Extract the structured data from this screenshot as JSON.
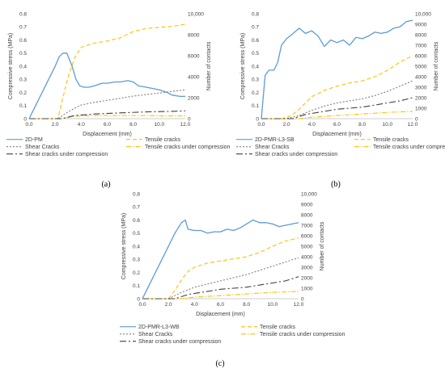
{
  "panel_labels": [
    "(a)",
    "(b)",
    "(c)"
  ],
  "colors": {
    "stress": "#5b9bd5",
    "tensile": "#ffc000",
    "shear": "#7f7f7f",
    "tensile_compression": "#ffc000",
    "shear_compression": "#404040",
    "axis": "#bfbfbf",
    "text": "#404040"
  },
  "chart_data": [
    {
      "type": "line",
      "panel": "(a)",
      "xlabel": "Displacement (mm)",
      "ylabel_left": "Compressive stress (MPa)",
      "ylabel_right": "Number of contacts",
      "xlim": [
        0,
        12
      ],
      "ylim_left": [
        0,
        0.8
      ],
      "ylim_right": [
        0,
        10000
      ],
      "xticks": [
        "0.0",
        "2.0",
        "4.0",
        "6.0",
        "8.0",
        "10.0",
        "12.0"
      ],
      "yticks_left": [
        "0",
        "0.1",
        "0.2",
        "0.3",
        "0.4",
        "0.5",
        "0.6",
        "0.7",
        "0.8"
      ],
      "yticks_right": [
        "0",
        "2000",
        "4000",
        "6000",
        "8000",
        "10,000"
      ],
      "grid": false,
      "legend_position": "bottom",
      "series": [
        {
          "name": "2D-PM",
          "axis": "left",
          "style": "solid",
          "color": "#5b9bd5",
          "x": [
            0,
            0.5,
            1.0,
            1.5,
            2.0,
            2.3,
            2.6,
            2.9,
            3.3,
            3.6,
            3.9,
            4.2,
            4.6,
            5.0,
            5.6,
            6.0,
            6.6,
            7.0,
            7.6,
            8.0,
            8.4,
            9.0,
            10.0,
            10.6,
            11.0,
            11.6,
            12.0
          ],
          "y": [
            0,
            0.1,
            0.2,
            0.3,
            0.4,
            0.47,
            0.5,
            0.5,
            0.4,
            0.3,
            0.25,
            0.24,
            0.24,
            0.25,
            0.27,
            0.27,
            0.28,
            0.28,
            0.29,
            0.28,
            0.25,
            0.24,
            0.22,
            0.2,
            0.18,
            0.17,
            0.17
          ]
        },
        {
          "name": "Tensile cracks",
          "axis": "right",
          "style": "dashed",
          "color": "#ffc000",
          "x": [
            0,
            2.2,
            2.6,
            3.0,
            3.5,
            4.0,
            5.0,
            6.0,
            7.0,
            8.0,
            9.0,
            10.0,
            11.0,
            12.0
          ],
          "y": [
            0,
            0,
            2000,
            4000,
            5800,
            6800,
            7200,
            7400,
            7700,
            8300,
            8600,
            8700,
            8800,
            9000
          ]
        },
        {
          "name": "Shear Cracks",
          "axis": "right",
          "style": "dotted",
          "color": "#7f7f7f",
          "x": [
            0,
            2.2,
            2.8,
            3.5,
            4.0,
            5.0,
            6.0,
            7.0,
            8.0,
            9.0,
            10.0,
            11.0,
            12.0
          ],
          "y": [
            0,
            0,
            500,
            1000,
            1300,
            1550,
            1750,
            1950,
            2150,
            2300,
            2450,
            2600,
            2750
          ]
        },
        {
          "name": "Tensile cracks under compression",
          "axis": "right",
          "style": "dashdot",
          "color": "#ffc000",
          "x": [
            0,
            2.5,
            3.5,
            5.0,
            7.0,
            9.0,
            10.0,
            11.0,
            12.0
          ],
          "y": [
            0,
            0,
            250,
            300,
            300,
            300,
            260,
            260,
            260
          ]
        },
        {
          "name": "Shear cracks under compression",
          "axis": "right",
          "style": "longdash",
          "color": "#404040",
          "x": [
            0,
            2.5,
            3.5,
            5.0,
            7.0,
            9.0,
            11.0,
            12.0
          ],
          "y": [
            0,
            0,
            300,
            450,
            550,
            650,
            700,
            750
          ]
        }
      ]
    },
    {
      "type": "line",
      "panel": "(b)",
      "xlabel": "Displacement (mm)",
      "ylabel_left": "Compressive stress (MPa)",
      "ylabel_right": "Number of contacts",
      "xlim": [
        0,
        12
      ],
      "ylim_left": [
        0,
        0.8
      ],
      "ylim_right": [
        0,
        10000
      ],
      "xticks": [
        "0.0",
        "2.0",
        "4.0",
        "6.0",
        "8.0",
        "10.0",
        "12.0"
      ],
      "yticks_left": [
        "0",
        "0.1",
        "0.2",
        "0.3",
        "0.4",
        "0.5",
        "0.6",
        "0.7",
        "0.8"
      ],
      "yticks_right": [
        "0",
        "1000",
        "2000",
        "3000",
        "4000",
        "5000",
        "6000",
        "7000",
        "8000",
        "9000",
        "10,000"
      ],
      "grid": false,
      "legend_position": "bottom",
      "series": [
        {
          "name": "2D-PMR-L3-SB",
          "axis": "left",
          "style": "solid",
          "color": "#5b9bd5",
          "x": [
            0,
            0.3,
            0.6,
            1.0,
            1.3,
            1.6,
            2.0,
            2.4,
            3.0,
            3.5,
            4.0,
            4.5,
            5.0,
            5.5,
            6.0,
            6.5,
            7.0,
            7.5,
            8.0,
            8.5,
            9.0,
            9.5,
            10.0,
            10.5,
            11.0,
            11.5,
            12.0
          ],
          "y": [
            0,
            0.33,
            0.37,
            0.37,
            0.43,
            0.56,
            0.61,
            0.64,
            0.69,
            0.65,
            0.67,
            0.63,
            0.55,
            0.6,
            0.58,
            0.6,
            0.56,
            0.62,
            0.61,
            0.63,
            0.66,
            0.65,
            0.66,
            0.69,
            0.7,
            0.74,
            0.75
          ]
        },
        {
          "name": "Tensile cracks",
          "axis": "right",
          "style": "dashed",
          "color": "#ffc000",
          "x": [
            0,
            1.5,
            2.0,
            2.5,
            3.0,
            3.5,
            4.0,
            5.0,
            6.0,
            7.0,
            8.0,
            9.0,
            10.0,
            11.0,
            12.0
          ],
          "y": [
            0,
            0,
            100,
            400,
            900,
            1500,
            2100,
            2700,
            3100,
            3400,
            3600,
            4000,
            4600,
            5400,
            6000
          ]
        },
        {
          "name": "Shear Cracks",
          "axis": "right",
          "style": "dotted",
          "color": "#7f7f7f",
          "x": [
            0,
            2.0,
            3.0,
            4.0,
            5.0,
            6.0,
            7.0,
            8.0,
            9.0,
            10.0,
            11.0,
            12.0
          ],
          "y": [
            0,
            0,
            300,
            800,
            1200,
            1500,
            1700,
            1900,
            2200,
            2600,
            3100,
            3600
          ]
        },
        {
          "name": "Tensile cracks under compression",
          "axis": "right",
          "style": "dashdot",
          "color": "#ffc000",
          "x": [
            0,
            3.0,
            4.0,
            6.0,
            8.0,
            10.0,
            12.0
          ],
          "y": [
            0,
            0,
            150,
            300,
            450,
            600,
            700
          ]
        },
        {
          "name": "Shear cracks under compression",
          "axis": "right",
          "style": "longdash",
          "color": "#404040",
          "x": [
            0,
            2.5,
            3.5,
            5.0,
            6.0,
            7.0,
            8.0,
            9.0,
            10.0,
            11.0,
            12.0
          ],
          "y": [
            0,
            0,
            400,
            700,
            900,
            1000,
            1100,
            1300,
            1500,
            1700,
            2000
          ]
        }
      ]
    },
    {
      "type": "line",
      "panel": "(c)",
      "xlabel": "Displacement (mm)",
      "ylabel_left": "Compressive stress (MPa)",
      "ylabel_right": "Number of contacts",
      "xlim": [
        0,
        12
      ],
      "ylim_left": [
        0,
        0.8
      ],
      "ylim_right": [
        0,
        10000
      ],
      "xticks": [
        "0.0",
        "2.0",
        "4.0",
        "6.0",
        "8.0",
        "10.0",
        "12.0"
      ],
      "yticks_left": [
        "0",
        "0.1",
        "0.2",
        "0.3",
        "0.4",
        "0.5",
        "0.6",
        "0.7",
        "0.8"
      ],
      "yticks_right": [
        "0",
        "1000",
        "2000",
        "3000",
        "4000",
        "5000",
        "6000",
        "7000",
        "8000",
        "9000",
        "10,000"
      ],
      "grid": false,
      "legend_position": "bottom",
      "series": [
        {
          "name": "2D-PMR-L3-WB",
          "axis": "left",
          "style": "solid",
          "color": "#5b9bd5",
          "x": [
            0,
            0.5,
            1.0,
            1.5,
            2.0,
            2.5,
            3.0,
            3.3,
            3.5,
            4.0,
            4.5,
            5.0,
            5.5,
            6.0,
            6.5,
            7.0,
            7.5,
            8.0,
            8.5,
            9.0,
            9.5,
            10.0,
            10.5,
            11.0,
            11.5,
            12.0
          ],
          "y": [
            0,
            0.1,
            0.2,
            0.3,
            0.4,
            0.5,
            0.58,
            0.6,
            0.53,
            0.52,
            0.52,
            0.5,
            0.51,
            0.51,
            0.53,
            0.52,
            0.54,
            0.57,
            0.6,
            0.58,
            0.58,
            0.57,
            0.55,
            0.56,
            0.57,
            0.58
          ]
        },
        {
          "name": "Tensile cracks",
          "axis": "right",
          "style": "dashed",
          "color": "#ffc000",
          "x": [
            0,
            2.0,
            2.5,
            3.0,
            3.5,
            4.0,
            5.0,
            6.0,
            7.0,
            8.0,
            9.0,
            10.0,
            11.0,
            12.0
          ],
          "y": [
            0,
            0,
            800,
            1800,
            2600,
            3000,
            3400,
            3600,
            3800,
            4000,
            4400,
            5000,
            5500,
            5800
          ]
        },
        {
          "name": "Shear Cracks",
          "axis": "right",
          "style": "dotted",
          "color": "#7f7f7f",
          "x": [
            0,
            2.0,
            3.0,
            4.0,
            5.0,
            6.0,
            7.0,
            8.0,
            9.0,
            10.0,
            11.0,
            12.0
          ],
          "y": [
            0,
            0,
            600,
            1100,
            1400,
            1700,
            2000,
            2300,
            2700,
            3100,
            3500,
            3900
          ]
        },
        {
          "name": "Tensile cracks under compression",
          "axis": "right",
          "style": "dashdot",
          "color": "#ffc000",
          "x": [
            0,
            3.0,
            4.0,
            6.0,
            8.0,
            10.0,
            12.0
          ],
          "y": [
            0,
            0,
            150,
            300,
            450,
            600,
            700
          ]
        },
        {
          "name": "Shear cracks under compression",
          "axis": "right",
          "style": "longdash",
          "color": "#404040",
          "x": [
            0,
            2.5,
            3.5,
            5.0,
            6.0,
            7.0,
            8.0,
            9.0,
            10.0,
            11.0,
            12.0
          ],
          "y": [
            0,
            0,
            400,
            700,
            900,
            1000,
            1100,
            1300,
            1500,
            1700,
            2100
          ]
        }
      ]
    }
  ]
}
